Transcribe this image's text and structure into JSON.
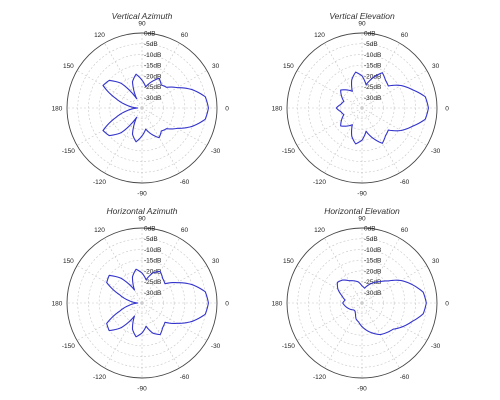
{
  "chart_data": [
    {
      "type": "polar",
      "title": "Vertical Azimuth",
      "radial_unit": "dB",
      "radial_range": [
        -35,
        0
      ],
      "ring_labels": [
        "0dB",
        "-5dB",
        "-10dB",
        "-15dB",
        "-20dB",
        "-25dB",
        "-30dB"
      ],
      "angle_labels": [
        "0",
        "30",
        "60",
        "90",
        "120",
        "150",
        "180",
        "-150",
        "-120",
        "-90",
        "-60",
        "-30"
      ],
      "series": [
        {
          "color": "#3333cc",
          "angles": [
            0,
            10,
            20,
            30,
            40,
            50,
            60,
            70,
            80,
            90,
            100,
            110,
            120,
            130,
            140,
            150,
            160,
            170,
            180,
            190,
            200,
            210,
            220,
            230,
            240,
            250,
            260,
            270,
            280,
            290,
            300,
            310,
            320,
            330,
            340,
            350
          ],
          "values": [
            -4,
            -5,
            -10,
            -16,
            -20,
            -21,
            -19,
            -22,
            -25,
            -22,
            -19,
            -22,
            -30,
            -20,
            -15,
            -14,
            -22,
            -28,
            -33,
            -28,
            -22,
            -14,
            -15,
            -20,
            -30,
            -22,
            -19,
            -22,
            -25,
            -22,
            -19,
            -21,
            -20,
            -16,
            -10,
            -5
          ]
        }
      ]
    },
    {
      "type": "polar",
      "title": "Vertical Elevation",
      "radial_unit": "dB",
      "radial_range": [
        -35,
        0
      ],
      "ring_labels": [
        "0dB",
        "-5dB",
        "-10dB",
        "-15dB",
        "-20dB",
        "-25dB",
        "-30dB"
      ],
      "angle_labels": [
        "0",
        "30",
        "60",
        "90",
        "120",
        "150",
        "180",
        "-150",
        "-120",
        "-90",
        "-60",
        "-30"
      ],
      "series": [
        {
          "color": "#3333cc",
          "angles": [
            0,
            10,
            20,
            30,
            40,
            50,
            60,
            70,
            80,
            90,
            100,
            110,
            120,
            130,
            140,
            150,
            160,
            170,
            180,
            190,
            200,
            210,
            220,
            230,
            240,
            250,
            260,
            270,
            280,
            290,
            300,
            310,
            320,
            330,
            340,
            350
          ],
          "values": [
            -4,
            -5,
            -10,
            -14,
            -19,
            -18,
            -16,
            -20,
            -24,
            -20,
            -18,
            -21,
            -26,
            -24,
            -22,
            -24,
            -26,
            -25,
            -23,
            -25,
            -26,
            -24,
            -22,
            -24,
            -26,
            -21,
            -18,
            -20,
            -24,
            -20,
            -16,
            -18,
            -19,
            -14,
            -10,
            -5
          ]
        }
      ]
    },
    {
      "type": "polar",
      "title": "Horizontal Azimuth",
      "radial_unit": "dB",
      "radial_range": [
        -35,
        0
      ],
      "ring_labels": [
        "0dB",
        "-5dB",
        "-10dB",
        "-15dB",
        "-20dB",
        "-25dB",
        "-30dB"
      ],
      "angle_labels": [
        "0",
        "30",
        "60",
        "90",
        "120",
        "150",
        "180",
        "-150",
        "-120",
        "-90",
        "-60",
        "-30"
      ],
      "series": [
        {
          "color": "#3333cc",
          "angles": [
            0,
            10,
            20,
            30,
            40,
            50,
            60,
            70,
            80,
            90,
            100,
            110,
            120,
            130,
            140,
            150,
            160,
            170,
            180,
            190,
            200,
            210,
            220,
            230,
            240,
            250,
            260,
            270,
            280,
            290,
            300,
            310,
            320,
            330,
            340,
            350
          ],
          "values": [
            -4,
            -5,
            -10,
            -16,
            -21,
            -20,
            -18,
            -20,
            -24,
            -21,
            -19,
            -22,
            -28,
            -20,
            -15,
            -16,
            -24,
            -29,
            -33,
            -29,
            -24,
            -16,
            -15,
            -20,
            -28,
            -22,
            -19,
            -21,
            -24,
            -20,
            -18,
            -20,
            -21,
            -16,
            -10,
            -5
          ]
        }
      ]
    },
    {
      "type": "polar",
      "title": "Horizontal Elevation",
      "radial_unit": "dB",
      "radial_range": [
        -35,
        0
      ],
      "ring_labels": [
        "0dB",
        "-5dB",
        "-10dB",
        "-15dB",
        "-20dB",
        "-25dB",
        "-30dB"
      ],
      "angle_labels": [
        "0",
        "30",
        "60",
        "90",
        "120",
        "150",
        "180",
        "-150",
        "-120",
        "-90",
        "-60",
        "-30"
      ],
      "series": [
        {
          "color": "#3333cc",
          "angles": [
            0,
            10,
            20,
            30,
            40,
            50,
            60,
            70,
            80,
            90,
            100,
            110,
            120,
            130,
            140,
            150,
            160,
            170,
            180,
            190,
            200,
            210,
            220,
            230,
            240,
            250,
            260,
            270,
            280,
            290,
            300,
            310,
            320,
            330,
            340,
            350
          ],
          "values": [
            -5,
            -6,
            -10,
            -14,
            -19,
            -22,
            -24,
            -26,
            -28,
            -27,
            -25,
            -24,
            -23,
            -21,
            -20,
            -22,
            -25,
            -27,
            -26,
            -27,
            -28,
            -29,
            -30,
            -30,
            -29,
            -27,
            -26,
            -24,
            -22,
            -20,
            -18,
            -17,
            -16,
            -13,
            -10,
            -6
          ]
        }
      ]
    }
  ]
}
